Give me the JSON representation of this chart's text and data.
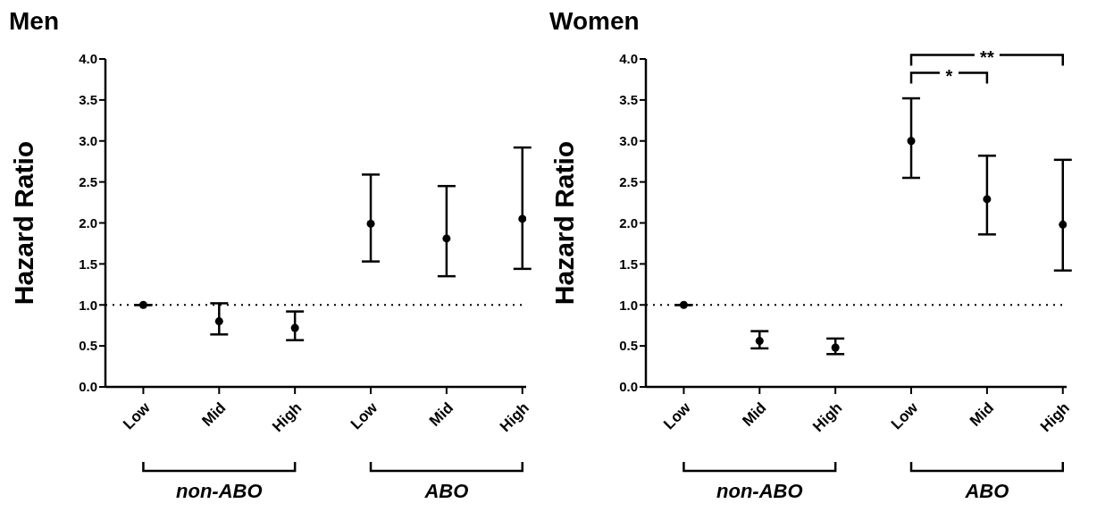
{
  "chart_data": [
    {
      "type": "scatter",
      "title": "Men",
      "ylabel": "Hazard Ratio",
      "categories": [
        "Low",
        "Mid",
        "High",
        "Low",
        "Mid",
        "High"
      ],
      "series": [
        {
          "color": "#000000",
          "values": [
            1.0,
            0.8,
            0.72,
            1.99,
            1.81,
            2.05
          ],
          "errors": [
            null,
            [
              0.64,
              1.02
            ],
            [
              0.57,
              0.92
            ],
            [
              1.53,
              2.59
            ],
            [
              1.35,
              2.45
            ],
            [
              1.44,
              2.92
            ]
          ]
        }
      ],
      "ylim": [
        0,
        4
      ],
      "yticks": [
        {
          "value": 0,
          "label": "0.0"
        },
        {
          "value": 0.5,
          "label": "0.5"
        },
        {
          "value": 1,
          "label": "1.0"
        },
        {
          "value": 1.5,
          "label": "1.5"
        },
        {
          "value": 2,
          "label": "2.0"
        },
        {
          "value": 2.5,
          "label": "2.5"
        },
        {
          "value": 3,
          "label": "3.0"
        },
        {
          "value": 3.5,
          "label": "3.5"
        },
        {
          "value": 4,
          "label": "4.0"
        }
      ],
      "marker": "circle",
      "ref_lines": [
        {
          "axis": "y",
          "value": 1,
          "color": "#000000",
          "line_style": "dotted"
        }
      ],
      "annotations": [
        "non-ABO",
        "ABO"
      ]
    },
    {
      "type": "scatter",
      "title": "Women",
      "ylabel": "Hazard Ratio",
      "categories": [
        "Low",
        "Mid",
        "High",
        "Low",
        "Mid",
        "High"
      ],
      "series": [
        {
          "color": "#000000",
          "values": [
            1.0,
            0.56,
            0.48,
            3.0,
            2.29,
            1.98
          ],
          "errors": [
            null,
            [
              0.47,
              0.68
            ],
            [
              0.4,
              0.59
            ],
            [
              2.55,
              3.52
            ],
            [
              1.86,
              2.82
            ],
            [
              1.42,
              2.77
            ]
          ]
        }
      ],
      "ylim": [
        0,
        4
      ],
      "yticks": [
        {
          "value": 0,
          "label": "0.0"
        },
        {
          "value": 0.5,
          "label": "0.5"
        },
        {
          "value": 1,
          "label": "1.0"
        },
        {
          "value": 1.5,
          "label": "1.5"
        },
        {
          "value": 2,
          "label": "2.0"
        },
        {
          "value": 2.5,
          "label": "2.5"
        },
        {
          "value": 3,
          "label": "3.0"
        },
        {
          "value": 3.5,
          "label": "3.5"
        },
        {
          "value": 4,
          "label": "4.0"
        }
      ],
      "marker": "circle",
      "ref_lines": [
        {
          "axis": "y",
          "value": 1,
          "color": "#000000",
          "line_style": "dotted"
        }
      ],
      "annotations": [
        "non-ABO",
        "ABO",
        "*",
        "**"
      ]
    }
  ]
}
